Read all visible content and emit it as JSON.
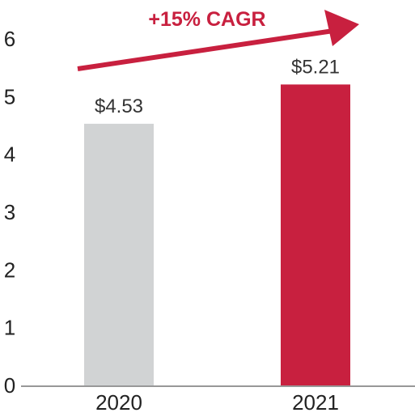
{
  "chart_data": {
    "type": "bar",
    "categories": [
      "2020",
      "2021"
    ],
    "values": [
      4.53,
      5.21
    ],
    "value_labels": [
      "$4.53",
      "$5.21"
    ],
    "bar_colors": [
      "#d1d3d4",
      "#c8203f"
    ],
    "ylim": [
      0,
      6
    ],
    "yticks": [
      0,
      1,
      2,
      3,
      4,
      5,
      6
    ],
    "grid": false,
    "legend": "none",
    "annotation": {
      "text": "+15% CAGR",
      "color": "#c8203f"
    },
    "axis_color": "#777777"
  }
}
